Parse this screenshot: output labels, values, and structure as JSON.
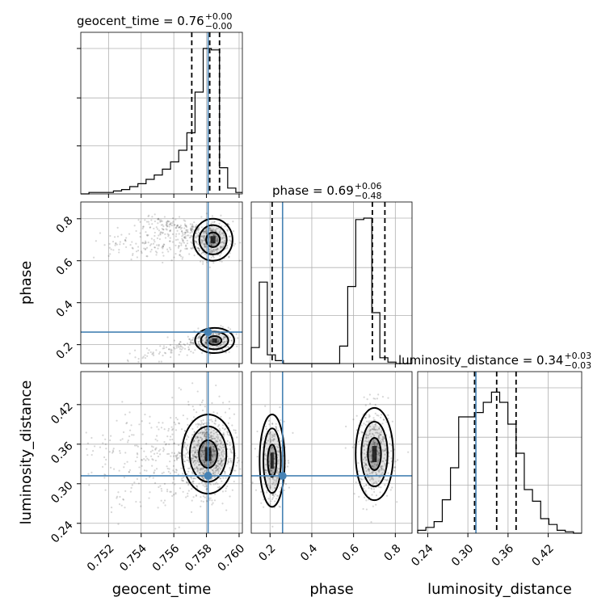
{
  "chart_data": {
    "type": "corner",
    "parameters": [
      "geocent_time",
      "phase",
      "luminosity_distance"
    ],
    "titles": [
      {
        "param": "geocent_time",
        "text": "geocent_time = 0.76",
        "sup": "+0.00",
        "sub": "−0.00"
      },
      {
        "param": "phase",
        "text": "phase = 0.69",
        "sup": "+0.06",
        "sub": "−0.48"
      },
      {
        "param": "luminosity_distance",
        "text": "luminosity_distance = 0.34",
        "sup": "+0.03",
        "sub": "−0.03"
      }
    ],
    "ranges": {
      "geocent_time": [
        0.7503,
        0.7602
      ],
      "phase": [
        0.11,
        0.88
      ],
      "luminosity_distance": [
        0.225,
        0.47
      ]
    },
    "ticks": {
      "geocent_time": [
        "0.752",
        "0.754",
        "0.756",
        "0.758",
        "0.760"
      ],
      "phase": [
        "0.2",
        "0.4",
        "0.6",
        "0.8"
      ],
      "luminosity_distance": [
        "0.24",
        "0.30",
        "0.36",
        "0.42"
      ]
    },
    "truths": {
      "geocent_time": 0.7581,
      "phase": 0.26,
      "luminosity_distance": 0.312
    },
    "quantiles": {
      "geocent_time": [
        0.7571,
        0.7582,
        0.7588
      ],
      "phase": [
        0.21,
        0.69,
        0.75
      ],
      "luminosity_distance": [
        0.31,
        0.343,
        0.372
      ]
    },
    "histograms": {
      "geocent_time": {
        "edges_start": 0.7503,
        "bin_width": 0.0005,
        "counts": [
          0,
          0.01,
          0.01,
          0.01,
          0.02,
          0.03,
          0.05,
          0.07,
          0.1,
          0.13,
          0.17,
          0.22,
          0.3,
          0.42,
          0.7,
          1.0,
          0.99,
          0.18,
          0.04,
          0.01
        ]
      },
      "phase": {
        "edges_start": 0.11,
        "bin_width": 0.0385,
        "counts": [
          0.11,
          0.56,
          0.06,
          0.02,
          0,
          0,
          0,
          0,
          0,
          0,
          0,
          0.12,
          0.53,
          0.99,
          1.0,
          0.35,
          0.04,
          0.01,
          0,
          0
        ]
      },
      "luminosity_distance": {
        "edges_start": 0.225,
        "bin_width": 0.01225,
        "counts": [
          0.02,
          0.04,
          0.08,
          0.23,
          0.45,
          0.8,
          0.8,
          0.83,
          0.9,
          0.97,
          0.9,
          0.75,
          0.55,
          0.3,
          0.22,
          0.1,
          0.06,
          0.02,
          0.01,
          0
        ]
      }
    },
    "xlabels": [
      "geocent_time",
      "phase",
      "luminosity_distance"
    ],
    "ylabels": [
      "",
      "phase",
      "luminosity_distance"
    ],
    "grid": true
  }
}
